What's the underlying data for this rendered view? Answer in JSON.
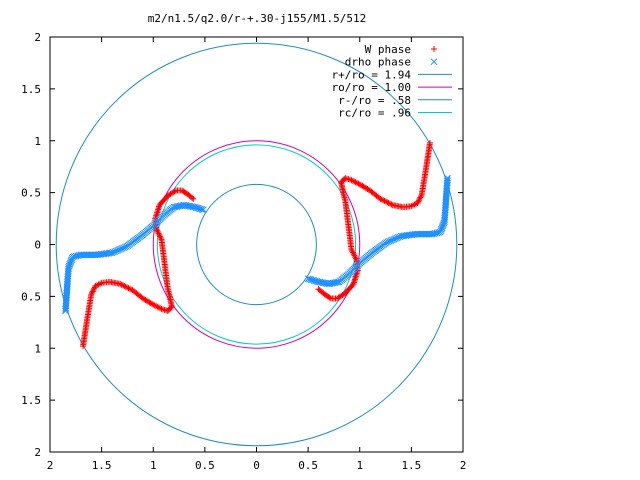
{
  "chart_data": {
    "type": "scatter",
    "title": "m2/n1.5/q2.0/r-+.30-j155/M1.5/512",
    "xlim": [
      -2,
      2
    ],
    "ylim": [
      -2,
      2
    ],
    "x_ticks": [
      -2,
      -1.5,
      -1,
      -0.5,
      0,
      0.5,
      1,
      1.5,
      2
    ],
    "x_tick_labels": [
      "2",
      "1.5",
      "1",
      "0.5",
      "0",
      "0.5",
      "1",
      "1.5",
      "2"
    ],
    "y_ticks": [
      2,
      1.5,
      1,
      0.5,
      0,
      -0.5,
      -1,
      -1.5,
      -2
    ],
    "y_tick_labels": [
      "2",
      "1.5",
      "1",
      "0.5",
      "0",
      "0.5",
      "1",
      "1.5",
      "2"
    ],
    "grid": false,
    "legend_position": "top-right",
    "colors": {
      "w_phase": "#ff0000",
      "drho_phase": "#1e90ff",
      "outer": "#1e8ccc",
      "ro": "#cc00cc",
      "inner": "#1e8ccc",
      "rc": "#00cccc"
    },
    "circles": [
      {
        "name": "r+/ro = 1.94",
        "radius": 1.94
      },
      {
        "name": "ro/ro = 1.00",
        "radius": 1.0
      },
      {
        "name": "r-/ro = .58",
        "radius": 0.58
      },
      {
        "name": "rc/ro = .96",
        "radius": 0.96
      }
    ],
    "series": [
      {
        "name": "W phase",
        "marker": "+",
        "points": [
          [
            -1.68,
            -0.98
          ],
          [
            -1.66,
            -0.85
          ],
          [
            -1.64,
            -0.72
          ],
          [
            -1.62,
            -0.6
          ],
          [
            -1.6,
            -0.48
          ],
          [
            -1.56,
            -0.4
          ],
          [
            -1.5,
            -0.37
          ],
          [
            -1.42,
            -0.36
          ],
          [
            -1.32,
            -0.38
          ],
          [
            -1.2,
            -0.44
          ],
          [
            -1.1,
            -0.52
          ],
          [
            -1.0,
            -0.58
          ],
          [
            -0.92,
            -0.62
          ],
          [
            -0.86,
            -0.64
          ],
          [
            -0.82,
            -0.6
          ],
          [
            -0.84,
            -0.5
          ],
          [
            -0.86,
            -0.42
          ],
          [
            -0.92,
            0.05
          ],
          [
            -0.97,
            0.15
          ],
          [
            -0.98,
            0.25
          ],
          [
            -0.94,
            0.38
          ],
          [
            -0.86,
            0.47
          ],
          [
            -0.78,
            0.52
          ],
          [
            -0.72,
            0.52
          ],
          [
            -0.66,
            0.48
          ],
          [
            -0.6,
            0.43
          ],
          [
            1.68,
            0.98
          ],
          [
            1.66,
            0.85
          ],
          [
            1.64,
            0.72
          ],
          [
            1.62,
            0.6
          ],
          [
            1.6,
            0.48
          ],
          [
            1.56,
            0.4
          ],
          [
            1.5,
            0.37
          ],
          [
            1.42,
            0.36
          ],
          [
            1.32,
            0.38
          ],
          [
            1.2,
            0.44
          ],
          [
            1.1,
            0.52
          ],
          [
            1.0,
            0.58
          ],
          [
            0.92,
            0.62
          ],
          [
            0.86,
            0.64
          ],
          [
            0.82,
            0.6
          ],
          [
            0.84,
            0.5
          ],
          [
            0.86,
            0.42
          ],
          [
            0.92,
            -0.05
          ],
          [
            0.97,
            -0.15
          ],
          [
            0.98,
            -0.25
          ],
          [
            0.94,
            -0.38
          ],
          [
            0.86,
            -0.47
          ],
          [
            0.78,
            -0.52
          ],
          [
            0.72,
            -0.52
          ],
          [
            0.66,
            -0.48
          ],
          [
            0.6,
            -0.43
          ]
        ]
      },
      {
        "name": "drho phase",
        "marker": "x",
        "points": [
          [
            -1.85,
            -0.64
          ],
          [
            -1.84,
            -0.5
          ],
          [
            -1.83,
            -0.35
          ],
          [
            -1.82,
            -0.22
          ],
          [
            -1.78,
            -0.12
          ],
          [
            -1.7,
            -0.1
          ],
          [
            -1.55,
            -0.1
          ],
          [
            -1.4,
            -0.08
          ],
          [
            -1.26,
            -0.02
          ],
          [
            -1.12,
            0.08
          ],
          [
            -1.0,
            0.18
          ],
          [
            -0.9,
            0.28
          ],
          [
            -0.8,
            0.36
          ],
          [
            -0.7,
            0.38
          ],
          [
            -0.6,
            0.36
          ],
          [
            -0.5,
            0.33
          ],
          [
            1.85,
            0.64
          ],
          [
            1.84,
            0.5
          ],
          [
            1.83,
            0.35
          ],
          [
            1.82,
            0.22
          ],
          [
            1.78,
            0.12
          ],
          [
            1.7,
            0.1
          ],
          [
            1.55,
            0.1
          ],
          [
            1.4,
            0.08
          ],
          [
            1.26,
            0.02
          ],
          [
            1.12,
            -0.08
          ],
          [
            1.0,
            -0.18
          ],
          [
            0.9,
            -0.28
          ],
          [
            0.8,
            -0.36
          ],
          [
            0.7,
            -0.38
          ],
          [
            0.6,
            -0.36
          ],
          [
            0.5,
            -0.33
          ]
        ]
      }
    ]
  }
}
